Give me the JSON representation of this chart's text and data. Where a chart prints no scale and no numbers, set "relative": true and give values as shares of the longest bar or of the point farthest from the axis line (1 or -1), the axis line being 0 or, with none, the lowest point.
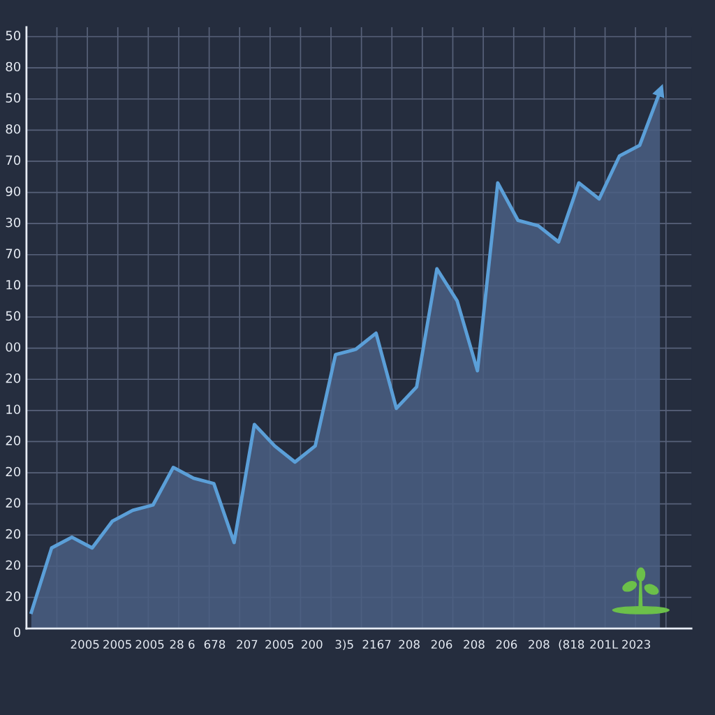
{
  "chart_data": {
    "type": "area",
    "relative": true,
    "categories": [
      null,
      null,
      null,
      null,
      null,
      null,
      null,
      null,
      null,
      null,
      null,
      null,
      null,
      null,
      null,
      null,
      null,
      null,
      null,
      null,
      null,
      null,
      null,
      null,
      null,
      null,
      null,
      null,
      null,
      null,
      null,
      null
    ],
    "series": [
      {
        "color": "#5b9fd8",
        "values": [
          0.03,
          0.15,
          0.17,
          0.15,
          0.2,
          0.22,
          0.23,
          0.3,
          0.28,
          0.27,
          0.16,
          0.38,
          0.34,
          0.31,
          0.34,
          0.51,
          0.52,
          0.55,
          0.41,
          0.45,
          0.67,
          0.61,
          0.48,
          0.83,
          0.76,
          0.75,
          0.72,
          0.83,
          0.8,
          0.88,
          0.9,
          1
        ]
      }
    ],
    "annotations": [
      "50",
      "80",
      "50",
      "80",
      "70",
      "90",
      "30",
      "70",
      "10",
      "50",
      "00",
      "20",
      "10",
      "20",
      "20",
      "20",
      "20",
      "20",
      "20",
      "0",
      "2005",
      "2005",
      "2005",
      "28 6",
      "678",
      "207",
      "2005",
      "200",
      "3)5",
      "2167",
      "208",
      "206",
      "208",
      "206",
      "208",
      "(818",
      "201L",
      "2023"
    ],
    "grid": true,
    "line_style": "solid"
  }
}
